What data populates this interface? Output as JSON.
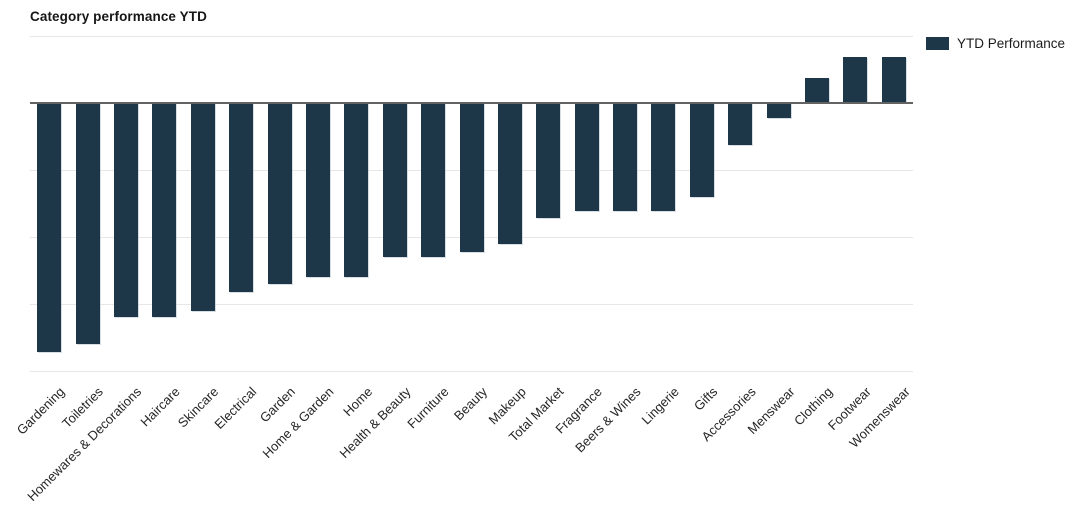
{
  "page": {
    "title": "Category performance YTD"
  },
  "legend": {
    "position": "top-right",
    "items": [
      {
        "label": "YTD Performance",
        "color": "#1d3748"
      }
    ]
  },
  "chart_data": {
    "type": "bar",
    "title": "Category performance YTD",
    "categories": [
      "Gardening",
      "Toiletries",
      "Homewares & Decorations",
      "Haircare",
      "Skincare",
      "Electrical",
      "Garden",
      "Home & Garden",
      "Home",
      "Health & Beauty",
      "Furniture",
      "Beauty",
      "Makeup",
      "Total Market",
      "Fragrance",
      "Beers & Wines",
      "Lingerie",
      "Gifts",
      "Accessories",
      "Menswear",
      "Clothing",
      "Footwear",
      "Womenswear"
    ],
    "series": [
      {
        "name": "YTD Performance",
        "values": [
          -3.72,
          -3.6,
          -3.2,
          -3.2,
          -3.1,
          -2.82,
          -2.7,
          -2.6,
          -2.6,
          -2.3,
          -2.3,
          -2.22,
          -2.1,
          -1.72,
          -1.61,
          -1.61,
          -1.61,
          -1.4,
          -0.62,
          -0.22,
          0.37,
          0.69,
          0.69
        ]
      }
    ],
    "xlabel": "",
    "ylabel": "",
    "y_axis": {
      "tick_labels_visible": false,
      "unit": "relative (no y tick labels shown; 1 = one gridline interval)",
      "ylim": [
        -4,
        1
      ],
      "gridline_step": 1
    },
    "x_axis": {
      "label_rotation_deg": -45,
      "first_labels_clipped_at_left_edge": true
    },
    "grid": true,
    "legend_position": "top-right",
    "colors": {
      "bar": "#1d3748",
      "gridline": "#e7e7e7",
      "zero_line": "#636363",
      "title_text": "#161616",
      "axis_label_text": "#262626",
      "background": "#ffffff"
    }
  }
}
